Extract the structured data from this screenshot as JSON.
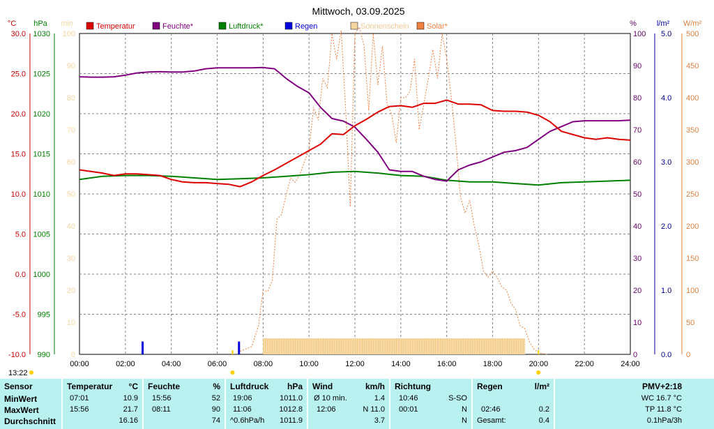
{
  "chart_data": {
    "type": "line",
    "title": "Mittwoch, 03.09.2025",
    "x_ticks": [
      "00:00",
      "02:00",
      "04:00",
      "06:00",
      "08:00",
      "10:00",
      "12:00",
      "14:00",
      "16:00",
      "18:00",
      "20:00",
      "22:00",
      "24:00"
    ],
    "axes": {
      "temperature": {
        "unit": "°C",
        "min": -10,
        "max": 30,
        "ticks": [
          "30.0",
          "25.0",
          "20.0",
          "15.0",
          "10.0",
          "5.0",
          "0.0",
          "-5.0",
          "-10.0"
        ],
        "color": "#cc0000"
      },
      "pressure": {
        "unit": "hPa",
        "min": 990,
        "max": 1030,
        "ticks": [
          "1030",
          "1025",
          "1020",
          "1015",
          "1010",
          "1005",
          "1000",
          "995",
          "990"
        ],
        "color": "#008000"
      },
      "sunshine": {
        "unit": "min",
        "min": 0,
        "max": 100,
        "ticks": [
          "100",
          "90",
          "80",
          "70",
          "60",
          "50",
          "40",
          "30",
          "20",
          "10",
          "0"
        ],
        "color": "#f5d6a0"
      },
      "humidity": {
        "unit": "%",
        "min": 0,
        "max": 100,
        "ticks": [
          "100",
          "90",
          "80",
          "70",
          "60",
          "50",
          "40",
          "30",
          "20",
          "10",
          "0"
        ],
        "color": "#660066"
      },
      "rain": {
        "unit": "l/m²",
        "min": 0,
        "max": 5,
        "ticks": [
          "5.0",
          "4.0",
          "3.0",
          "2.0",
          "1.0",
          "0.0"
        ],
        "color": "#000099"
      },
      "solar": {
        "unit": "W/m²",
        "min": 0,
        "max": 500,
        "ticks": [
          "500",
          "450",
          "400",
          "350",
          "300",
          "250",
          "200",
          "150",
          "100",
          "50",
          "0"
        ],
        "color": "#e08040"
      }
    },
    "legend": [
      {
        "name": "Temperatur",
        "color": "#dd0000"
      },
      {
        "name": "Feuchte*",
        "color": "#800080"
      },
      {
        "name": "Luftdruck*",
        "color": "#008000"
      },
      {
        "name": "Regen",
        "color": "#0000dd"
      },
      {
        "name": "Sonnenschein",
        "color": "#f5d6a0"
      },
      {
        "name": "Solar*",
        "color": "#f08040"
      }
    ],
    "series": {
      "temperature": {
        "axis": "temperature",
        "color": "#dd0000",
        "x": [
          0,
          0.5,
          1,
          1.5,
          2,
          2.5,
          3,
          3.5,
          4,
          4.5,
          5,
          5.5,
          6,
          6.5,
          7,
          7.5,
          8,
          8.5,
          9,
          9.5,
          10,
          10.5,
          11,
          11.5,
          12,
          12.5,
          13,
          13.5,
          14,
          14.5,
          15,
          15.5,
          16,
          16.5,
          17,
          17.5,
          18,
          18.5,
          19,
          19.5,
          20,
          20.5,
          21,
          21.5,
          22,
          22.5,
          23,
          23.5,
          24
        ],
        "y": [
          13.0,
          12.8,
          12.6,
          12.3,
          12.5,
          12.5,
          12.4,
          12.3,
          11.8,
          11.5,
          11.4,
          11.4,
          11.3,
          11.2,
          10.9,
          11.5,
          12.3,
          13.0,
          13.8,
          14.6,
          15.4,
          16.2,
          17.5,
          17.4,
          18.5,
          19.3,
          20.2,
          20.9,
          21.0,
          20.8,
          21.3,
          21.3,
          21.7,
          21.2,
          21.2,
          21.1,
          20.4,
          20.3,
          20.3,
          20.2,
          19.8,
          19.0,
          17.8,
          17.4,
          17.0,
          16.8,
          17.0,
          16.8,
          16.7
        ]
      },
      "humidity": {
        "axis": "humidity",
        "color": "#800080",
        "x": [
          0,
          0.5,
          1,
          1.5,
          2,
          2.5,
          3,
          3.5,
          4,
          4.5,
          5,
          5.5,
          6,
          6.5,
          7,
          7.5,
          8,
          8.5,
          9,
          9.5,
          10,
          10.5,
          11,
          11.5,
          12,
          12.5,
          13,
          13.5,
          14,
          14.5,
          15,
          15.5,
          16,
          16.5,
          17,
          17.5,
          18,
          18.5,
          19,
          19.5,
          20,
          20.5,
          21,
          21.5,
          22,
          22.5,
          23,
          23.5,
          24
        ],
        "y": [
          86.5,
          86.4,
          86.4,
          86.5,
          87.0,
          87.7,
          88.0,
          88.1,
          88.0,
          88.0,
          88.3,
          89.0,
          89.3,
          89.3,
          89.3,
          89.3,
          89.4,
          89.0,
          86.0,
          83.5,
          81.5,
          77.0,
          73.5,
          72.7,
          70.8,
          67.0,
          63.0,
          57.5,
          57.0,
          57.0,
          55.5,
          54.5,
          54.0,
          57.5,
          59.0,
          60.0,
          61.5,
          63.0,
          63.5,
          64.5,
          67.0,
          69.5,
          71.0,
          72.5,
          72.8,
          72.8,
          72.8,
          72.8,
          73.0
        ]
      },
      "pressure": {
        "axis": "pressure",
        "color": "#008000",
        "x": [
          0,
          1,
          2,
          3,
          4,
          5,
          6,
          7,
          8,
          9,
          10,
          11,
          12,
          13,
          14,
          15,
          16,
          17,
          18,
          19,
          20,
          21,
          22,
          23,
          24
        ],
        "y": [
          1011.8,
          1012.2,
          1012.3,
          1012.3,
          1012.2,
          1012.0,
          1011.8,
          1011.9,
          1012.0,
          1012.2,
          1012.4,
          1012.7,
          1012.8,
          1012.6,
          1012.3,
          1012.2,
          1011.7,
          1011.5,
          1011.5,
          1011.3,
          1011.1,
          1011.4,
          1011.5,
          1011.6,
          1011.7
        ]
      },
      "solar": {
        "axis": "solar",
        "color": "#f08040",
        "x": [
          7.0,
          7.5,
          7.8,
          8.0,
          8.2,
          8.4,
          8.6,
          8.8,
          9.0,
          9.2,
          9.4,
          9.6,
          9.8,
          10.0,
          10.2,
          10.4,
          10.6,
          10.8,
          11.0,
          11.2,
          11.4,
          11.6,
          11.8,
          12.0,
          12.2,
          12.4,
          12.6,
          12.8,
          13.0,
          13.2,
          13.4,
          13.6,
          13.8,
          14.0,
          14.2,
          14.4,
          14.6,
          14.8,
          15.0,
          15.2,
          15.4,
          15.6,
          15.8,
          16.0,
          16.2,
          16.4,
          16.6,
          16.8,
          17.0,
          17.2,
          17.4,
          17.6,
          17.8,
          18.0,
          18.2,
          18.4,
          18.6,
          18.8,
          19.0,
          19.2,
          19.4,
          19.6,
          19.8,
          20.0,
          20.2,
          20.4
        ],
        "y": [
          5,
          12,
          45,
          100,
          98,
          115,
          210,
          218,
          248,
          275,
          268,
          280,
          300,
          320,
          385,
          365,
          430,
          415,
          500,
          460,
          505,
          380,
          230,
          500,
          510,
          480,
          380,
          500,
          420,
          480,
          390,
          375,
          330,
          400,
          400,
          410,
          460,
          350,
          390,
          430,
          475,
          430,
          500,
          460,
          400,
          330,
          245,
          220,
          240,
          200,
          170,
          130,
          120,
          130,
          120,
          105,
          100,
          80,
          70,
          45,
          40,
          20,
          8,
          3,
          1,
          0
        ]
      },
      "sunshine_bars": {
        "axis": "sunshine",
        "color": "#f7d9a6",
        "from": "08:00",
        "to": "19:25",
        "value": 5
      },
      "rain_bars": {
        "axis": "rain",
        "color": "#0000dd",
        "x": [
          2.75,
          6.95
        ],
        "values": [
          0.2,
          0.2
        ]
      }
    },
    "markers": {
      "sunrise_time": "06:40",
      "sunset_time": "20:00",
      "current_time": "13:22"
    }
  },
  "stats": {
    "sensor": {
      "head": "Sensor",
      "rows": [
        "MinWert",
        "MaxWert",
        "Durchschnitt"
      ]
    },
    "temperature": {
      "head": "Temperatur",
      "unit": "°C",
      "rows": [
        [
          "07:01",
          "10.9"
        ],
        [
          "15:56",
          "21.7"
        ],
        [
          "",
          "16.16"
        ]
      ]
    },
    "humidity": {
      "head": "Feuchte",
      "unit": "%",
      "rows": [
        [
          "15:56",
          "52"
        ],
        [
          "08:11",
          "90"
        ],
        [
          "",
          "74"
        ]
      ]
    },
    "pressure": {
      "head": "Luftdruck",
      "unit": "hPa",
      "rows": [
        [
          "19:06",
          "1011.0"
        ],
        [
          "11:06",
          "1012.8"
        ],
        [
          "^0.6hPa/h",
          "1011.9"
        ]
      ]
    },
    "wind": {
      "head": "Wind",
      "unit": "km/h",
      "rows": [
        [
          "Ø 10 min.",
          "1.4"
        ],
        [
          "12:06",
          "N 11.0"
        ],
        [
          "",
          "3.7"
        ]
      ]
    },
    "direction": {
      "head": "Richtung",
      "unit": "",
      "rows": [
        [
          "10:46",
          "S-SO"
        ],
        [
          "00:01",
          "N"
        ],
        [
          "",
          "N"
        ]
      ]
    },
    "rain": {
      "head": "Regen",
      "unit": "l/m²",
      "rows": [
        [
          "",
          ""
        ],
        [
          "02:46",
          "0.2"
        ],
        [
          "Gesamt:",
          "0.4"
        ]
      ]
    },
    "pmv": {
      "head": "PMV+2:18",
      "rows": [
        "WC 16.7 °C",
        "TP 11.8 °C",
        "0.1hPa/3h"
      ]
    }
  }
}
